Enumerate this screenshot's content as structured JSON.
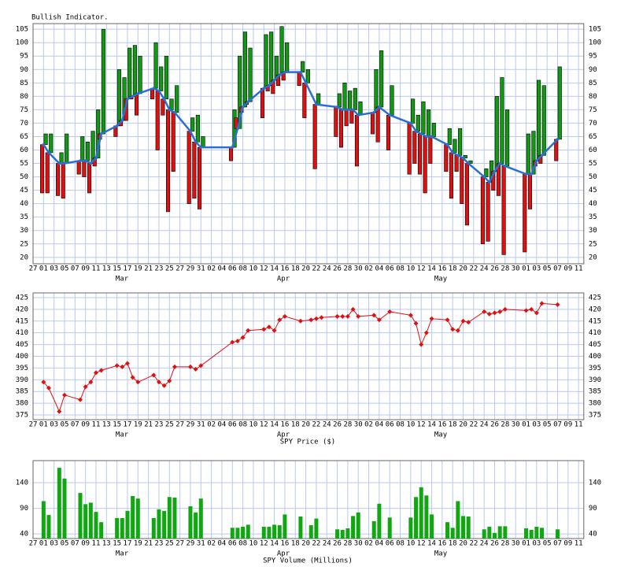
{
  "chart_data": [
    {
      "type": "indicator",
      "title": "Bullish Indicator.",
      "x": [
        "Mar 01",
        "Mar 02",
        "Mar 04",
        "Mar 05",
        "Mar 08",
        "Mar 09",
        "Mar 10",
        "Mar 11",
        "Mar 12",
        "Mar 15",
        "Mar 16",
        "Mar 17",
        "Mar 18",
        "Mar 19",
        "Mar 22",
        "Mar 23",
        "Mar 24",
        "Mar 25",
        "Mar 26",
        "Mar 29",
        "Mar 30",
        "Mar 31",
        "Apr 06",
        "Apr 07",
        "Apr 08",
        "Apr 09",
        "Apr 12",
        "Apr 13",
        "Apr 14",
        "Apr 15",
        "Apr 16",
        "Apr 19",
        "Apr 20",
        "Apr 22",
        "Apr 26",
        "Apr 27",
        "Apr 28",
        "Apr 29",
        "Apr 30",
        "May 03",
        "May 04",
        "May 06",
        "May 10",
        "May 11",
        "May 12",
        "May 13",
        "May 14",
        "May 17",
        "May 18",
        "May 19",
        "May 20",
        "May 21",
        "May 24",
        "May 25",
        "May 26",
        "May 27",
        "May 28",
        "Jun 01",
        "Jun 02",
        "Jun 03",
        "Jun 04",
        "Jun 07"
      ],
      "series": [
        {
          "color": "#109a10",
          "values": [
            66,
            66,
            59,
            66,
            65,
            63,
            67,
            75,
            105,
            90,
            87,
            98,
            99,
            95,
            100,
            91,
            95,
            79,
            84,
            72,
            73,
            65,
            75,
            95,
            104,
            98,
            103,
            104,
            95,
            106,
            100,
            93,
            90,
            81,
            81,
            85,
            82,
            83,
            78,
            90,
            97,
            84,
            79,
            73,
            78,
            75,
            70,
            68,
            64,
            68,
            58,
            56,
            53,
            56,
            80,
            87,
            75,
            66,
            67,
            86,
            84,
            91
          ]
        },
        {
          "color": "#e01010",
          "values": [
            44,
            44,
            43,
            42,
            51,
            50,
            44,
            54,
            64,
            65,
            69,
            71,
            79,
            73,
            79,
            60,
            73,
            37,
            52,
            40,
            42,
            38,
            56,
            72,
            74,
            77,
            72,
            82,
            81,
            84,
            86,
            84,
            72,
            53,
            65,
            61,
            69,
            70,
            54,
            66,
            63,
            60,
            51,
            55,
            51,
            44,
            55,
            52,
            42,
            52,
            40,
            32,
            25,
            26,
            45,
            43,
            21,
            22,
            38,
            54,
            55,
            56
          ]
        },
        {
          "color": "#2a6fd6",
          "values": [
            62,
            59,
            55,
            55,
            56,
            56,
            55,
            57,
            66,
            69,
            71,
            79,
            80,
            81,
            83,
            82,
            79,
            75,
            74,
            67,
            63,
            61,
            61,
            68,
            76,
            78,
            83,
            84,
            86,
            88,
            89,
            89,
            85,
            77,
            76,
            75,
            75,
            75,
            73,
            74,
            76,
            73,
            70,
            67,
            66,
            65,
            65,
            62,
            59,
            58,
            57,
            55,
            50,
            48,
            52,
            55,
            54,
            51,
            51,
            56,
            58,
            64
          ]
        }
      ],
      "ylim": [
        17.6,
        107.1
      ],
      "yticks": [
        20,
        25,
        30,
        35,
        40,
        45,
        50,
        55,
        60,
        65,
        70,
        75,
        80,
        85,
        90,
        95,
        100,
        105
      ],
      "grid": true,
      "xtick_labels": [
        "27",
        "01",
        "03",
        "05",
        "07",
        "09",
        "11",
        "13",
        "15",
        "17",
        "19",
        "21",
        "23",
        "25",
        "27",
        "29",
        "31",
        "02",
        "04",
        "06",
        "08",
        "10",
        "12",
        "14",
        "16",
        "18",
        "20",
        "22",
        "24",
        "26",
        "28",
        "30",
        "02",
        "04",
        "06",
        "08",
        "10",
        "12",
        "14",
        "16",
        "18",
        "20",
        "22",
        "24",
        "26",
        "28",
        "30",
        "01",
        "03",
        "05",
        "07",
        "09",
        "11"
      ],
      "month_labels": [
        "Mar",
        "Apr",
        "May"
      ]
    },
    {
      "type": "line",
      "x_label": "SPY Price ($)",
      "x": [
        "Mar 01",
        "Mar 02",
        "Mar 04",
        "Mar 05",
        "Mar 08",
        "Mar 09",
        "Mar 10",
        "Mar 11",
        "Mar 12",
        "Mar 15",
        "Mar 16",
        "Mar 17",
        "Mar 18",
        "Mar 19",
        "Mar 22",
        "Mar 23",
        "Mar 24",
        "Mar 25",
        "Mar 26",
        "Mar 29",
        "Mar 30",
        "Mar 31",
        "Apr 06",
        "Apr 07",
        "Apr 08",
        "Apr 09",
        "Apr 12",
        "Apr 13",
        "Apr 14",
        "Apr 15",
        "Apr 16",
        "Apr 19",
        "Apr 21",
        "Apr 22",
        "Apr 23",
        "Apr 26",
        "Apr 27",
        "Apr 28",
        "Apr 29",
        "Apr 30",
        "May 03",
        "May 04",
        "May 06",
        "May 10",
        "May 11",
        "May 12",
        "May 13",
        "May 14",
        "May 17",
        "May 18",
        "May 19",
        "May 20",
        "May 21",
        "May 24",
        "May 25",
        "May 26",
        "May 27",
        "May 28",
        "Jun 01",
        "Jun 02",
        "Jun 03",
        "Jun 04",
        "Jun 07"
      ],
      "series": [
        {
          "color": "#e01010",
          "values": [
            389,
            386.5,
            376.5,
            383.5,
            381.5,
            387,
            389,
            393,
            394,
            396,
            395.5,
            397,
            391,
            389,
            392,
            389,
            387.5,
            389.5,
            395.5,
            395.5,
            394.5,
            396,
            406,
            406.5,
            408,
            411,
            411.5,
            412.5,
            411,
            415.5,
            417,
            415,
            415.5,
            416,
            416.5,
            417,
            417,
            417,
            420,
            417,
            417.5,
            415.5,
            419,
            417.5,
            414,
            405,
            410,
            416,
            415.5,
            411.5,
            411,
            415,
            414.5,
            419,
            418,
            418.5,
            419,
            420,
            419.5,
            420,
            418.5,
            422.5,
            422
          ]
        }
      ],
      "ylim": [
        373,
        427
      ],
      "yticks": [
        375,
        380,
        385,
        390,
        395,
        400,
        405,
        410,
        415,
        420,
        425
      ],
      "grid": true,
      "xtick_labels": [
        "27",
        "01",
        "03",
        "05",
        "07",
        "09",
        "11",
        "13",
        "15",
        "17",
        "19",
        "21",
        "23",
        "25",
        "27",
        "29",
        "31",
        "02",
        "04",
        "06",
        "08",
        "10",
        "12",
        "14",
        "16",
        "18",
        "20",
        "22",
        "24",
        "26",
        "28",
        "30",
        "02",
        "04",
        "06",
        "08",
        "10",
        "12",
        "14",
        "16",
        "18",
        "20",
        "22",
        "24",
        "26",
        "28",
        "30",
        "01",
        "03",
        "05",
        "07",
        "09",
        "11"
      ],
      "month_labels": [
        "Mar",
        "Apr",
        "May"
      ]
    },
    {
      "type": "bar",
      "x_label": "SPY Volume (Millions)",
      "x": [
        "Mar 01",
        "Mar 02",
        "Mar 04",
        "Mar 05",
        "Mar 08",
        "Mar 09",
        "Mar 10",
        "Mar 11",
        "Mar 12",
        "Mar 15",
        "Mar 16",
        "Mar 17",
        "Mar 18",
        "Mar 19",
        "Mar 22",
        "Mar 23",
        "Mar 24",
        "Mar 25",
        "Mar 26",
        "Mar 29",
        "Mar 30",
        "Mar 31",
        "Apr 06",
        "Apr 07",
        "Apr 08",
        "Apr 09",
        "Apr 12",
        "Apr 13",
        "Apr 14",
        "Apr 15",
        "Apr 16",
        "Apr 19",
        "Apr 21",
        "Apr 22",
        "Apr 26",
        "Apr 27",
        "Apr 28",
        "Apr 29",
        "Apr 30",
        "May 03",
        "May 04",
        "May 06",
        "May 10",
        "May 11",
        "May 12",
        "May 13",
        "May 14",
        "May 17",
        "May 18",
        "May 19",
        "May 20",
        "May 21",
        "May 24",
        "May 25",
        "May 26",
        "May 27",
        "May 28",
        "Jun 01",
        "Jun 02",
        "Jun 03",
        "Jun 04",
        "Jun 07"
      ],
      "series": [
        {
          "color": "#10a810",
          "values": [
            104,
            77,
            169,
            148,
            120,
            98,
            101,
            83,
            63,
            71,
            71,
            85,
            114,
            109,
            71,
            88,
            85,
            112,
            111,
            94,
            82,
            109,
            52,
            52,
            54,
            58,
            54,
            54,
            58,
            57,
            78,
            74,
            57,
            70,
            49,
            48,
            51,
            75,
            82,
            65,
            99,
            72,
            72,
            112,
            131,
            115,
            78,
            63,
            52,
            104,
            75,
            74,
            49,
            54,
            42,
            55,
            55,
            51,
            48,
            54,
            52,
            49
          ]
        }
      ],
      "ylim": [
        31,
        183
      ],
      "yticks": [
        40,
        90,
        140
      ],
      "grid": true,
      "xtick_labels": [
        "27",
        "01",
        "03",
        "05",
        "07",
        "09",
        "11",
        "13",
        "15",
        "17",
        "19",
        "21",
        "23",
        "25",
        "27",
        "29",
        "31",
        "02",
        "04",
        "06",
        "08",
        "10",
        "12",
        "14",
        "16",
        "18",
        "20",
        "22",
        "24",
        "26",
        "28",
        "30",
        "02",
        "04",
        "06",
        "08",
        "10",
        "12",
        "14",
        "16",
        "18",
        "20",
        "22",
        "24",
        "26",
        "28",
        "30",
        "01",
        "03",
        "05",
        "07",
        "09",
        "11"
      ],
      "month_labels": [
        "Mar",
        "Apr",
        "May"
      ]
    }
  ]
}
